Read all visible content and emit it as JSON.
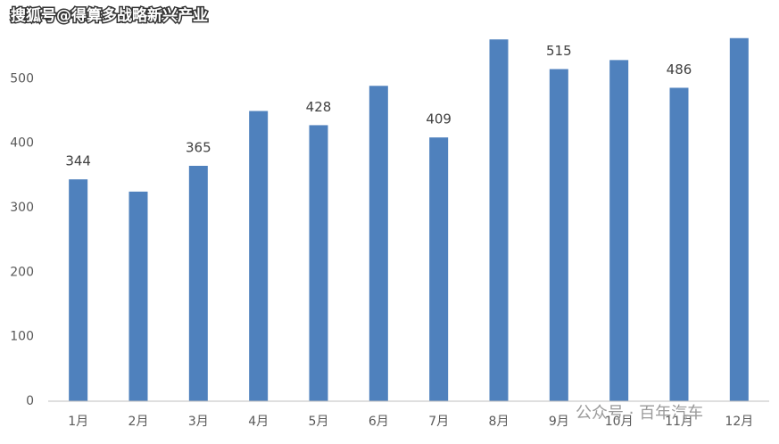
{
  "chart_data": {
    "type": "bar",
    "categories": [
      "1月",
      "2月",
      "3月",
      "4月",
      "5月",
      "6月",
      "7月",
      "8月",
      "9月",
      "10月",
      "11月",
      "12月"
    ],
    "values": [
      344,
      325,
      365,
      450,
      428,
      489,
      409,
      561,
      515,
      529,
      486,
      563
    ],
    "value_labels": [
      "344",
      null,
      "365",
      null,
      "428",
      null,
      "409",
      null,
      "515",
      null,
      "486",
      null
    ],
    "color": "#4f81bd",
    "ylim": [
      0,
      600
    ],
    "yticks": [
      0,
      100,
      200,
      300,
      400,
      500
    ],
    "grid": false,
    "annotations": [
      "搜狐号@得算多战略新兴产业",
      "公众号 · 百年汽车"
    ]
  }
}
